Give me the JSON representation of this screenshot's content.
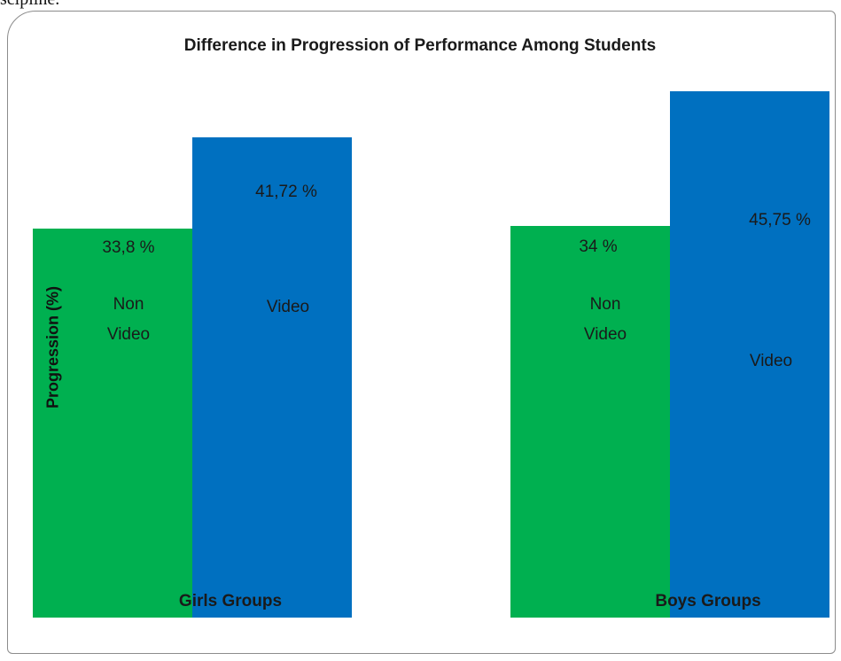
{
  "page_text": "scipline.",
  "chart_data": {
    "type": "bar",
    "title": "Difference in Progression of Performance Among Students",
    "y_label": "Progression (%)",
    "categories": [
      "Girls Groups",
      "Boys Groups"
    ],
    "series": [
      {
        "name": "Non Video",
        "color": "#00b050",
        "values": [
          33.8,
          34
        ],
        "value_labels": [
          "33,8 %",
          "34 %"
        ]
      },
      {
        "name": "Video",
        "color": "#0070c0",
        "values": [
          41.72,
          45.75
        ],
        "value_labels": [
          "41,72 %",
          "45,75 %"
        ]
      }
    ],
    "ylim": [
      0,
      53.5
    ]
  }
}
